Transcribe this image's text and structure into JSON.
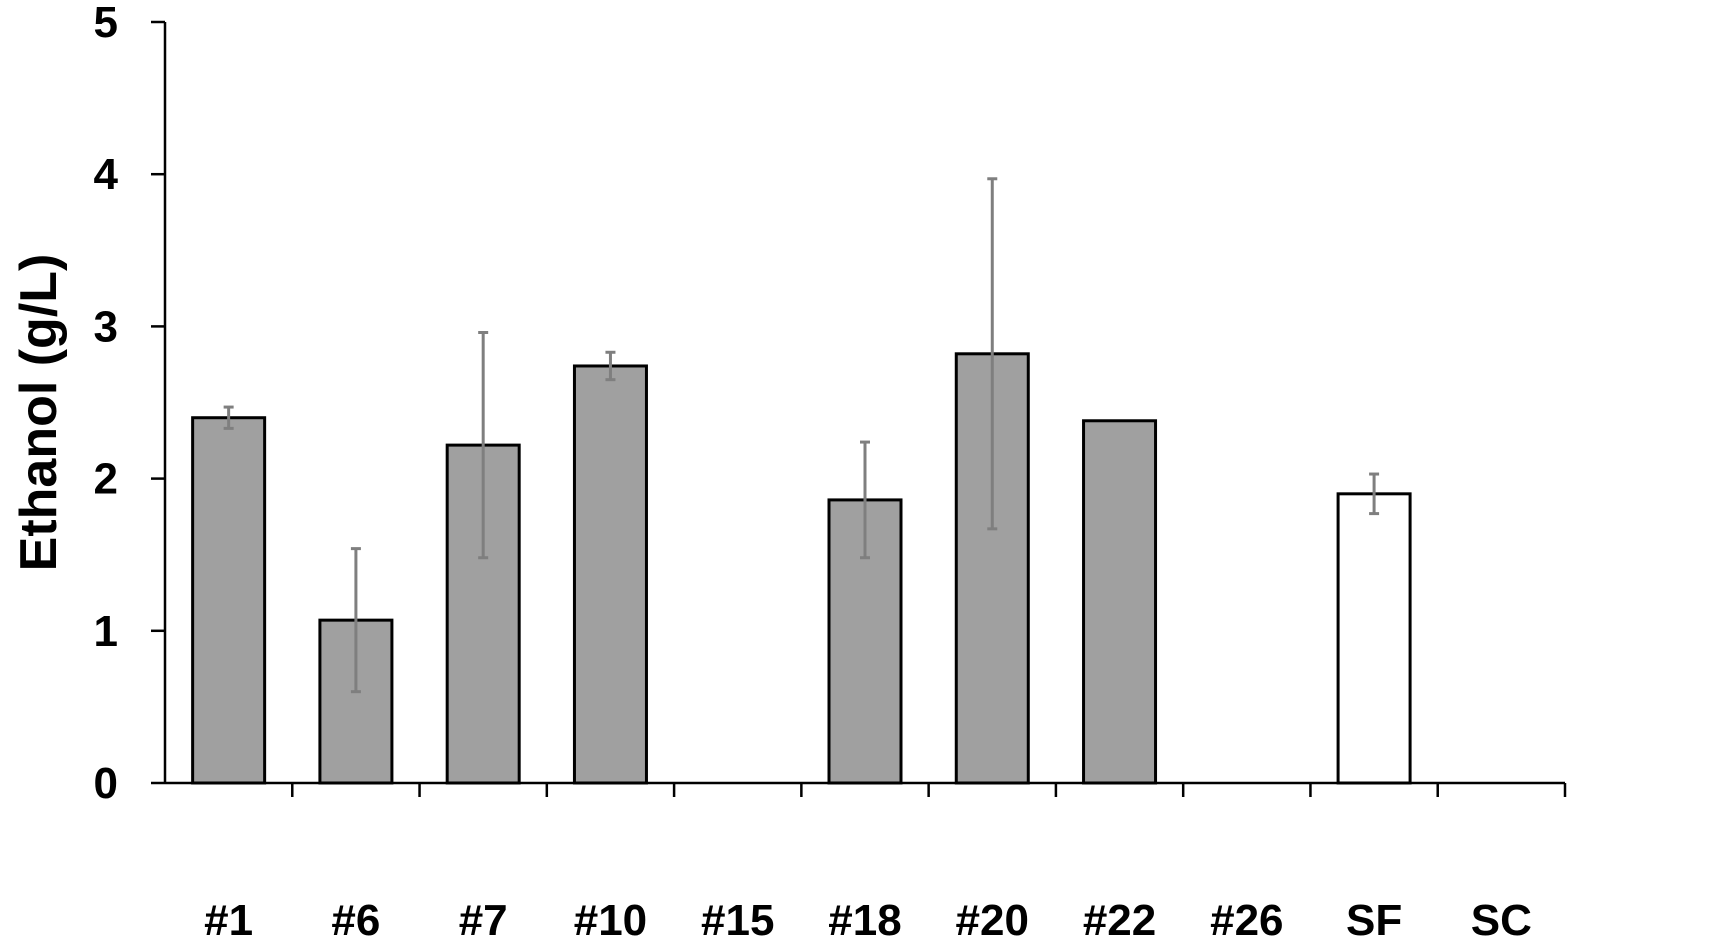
{
  "chart_data": {
    "type": "bar",
    "title": "",
    "xlabel": "",
    "ylabel": "Ethanol (g/L)",
    "ylim": [
      0,
      5
    ],
    "yticks": [
      "0",
      "1",
      "2",
      "3",
      "4",
      "5"
    ],
    "grid": false,
    "legend": "none",
    "categories": [
      "#1",
      "#6",
      "#7",
      "#10",
      "#15",
      "#18",
      "#20",
      "#22",
      "#26",
      "SF",
      "SC"
    ],
    "series": [
      {
        "values": [
          2.4,
          1.07,
          2.22,
          2.74,
          0,
          1.86,
          2.82,
          2.38,
          0,
          1.9,
          0
        ],
        "errors": [
          0.07,
          0.47,
          0.74,
          0.09,
          0,
          0.38,
          1.15,
          0,
          0,
          0.13,
          0
        ]
      }
    ],
    "bar_fill_colors": [
      "#a0a0a0",
      "#a0a0a0",
      "#a0a0a0",
      "#a0a0a0",
      "#a0a0a0",
      "#a0a0a0",
      "#a0a0a0",
      "#a0a0a0",
      "#a0a0a0",
      "#ffffff",
      "#ffffff"
    ],
    "bar_edge_color": "#000000",
    "error_bar_color": "#7f7f7f"
  }
}
